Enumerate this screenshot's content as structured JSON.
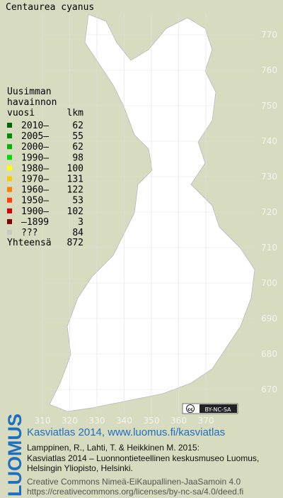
{
  "title": "Centaurea cyanus",
  "legend": {
    "heading": [
      "Uusimman",
      "havainnon"
    ],
    "col_headers": [
      "vuosi",
      "lkm"
    ],
    "items": [
      {
        "label": "2010–",
        "count": 62,
        "color": "#006400"
      },
      {
        "label": "2005–",
        "count": 55,
        "color": "#008c00"
      },
      {
        "label": "2000–",
        "count": 62,
        "color": "#00b400"
      },
      {
        "label": "1990–",
        "count": 98,
        "color": "#00e000"
      },
      {
        "label": "1980–",
        "count": 100,
        "color": "#ffff00"
      },
      {
        "label": "1970–",
        "count": 131,
        "color": "#ffc800"
      },
      {
        "label": "1960–",
        "count": 122,
        "color": "#ff8000"
      },
      {
        "label": "1950–",
        "count": 53,
        "color": "#ff4000"
      },
      {
        "label": "1900–",
        "count": 102,
        "color": "#d00000"
      },
      {
        "label": "–1899",
        "count": 3,
        "color": "#800000"
      },
      {
        "label": "???",
        "count": 84,
        "color": "#c8c8c8"
      }
    ],
    "total": {
      "label": "Yhteensä",
      "count": 872
    }
  },
  "x_ticks": [
    310,
    320,
    330,
    340,
    350,
    360,
    370
  ],
  "y_ticks": [
    670,
    680,
    690,
    700,
    710,
    720,
    730,
    740,
    750,
    760,
    770
  ],
  "license": {
    "icon": "cc",
    "text": "BY-NC-SA"
  },
  "footer": {
    "logo": "LUOMUS",
    "headline": "Kasviatlas 2014, www.luomus.fi/kasviatlas",
    "citation": [
      "Lamppinen, R., Lahti, T. & Heikkinen M. 2015:",
      "Kasviatlas 2014 – Luonnontieteellinen keskusmuseo Luomus,",
      "Helsingin Yliopisto, Helsinki."
    ],
    "license_lines": [
      "Creative Commons Nimeä-EiKaupallinen-JaaSamoin 4.0",
      "https://creativecommons.org/licenses/by-nc-sa/4.0/deed.fi"
    ]
  }
}
